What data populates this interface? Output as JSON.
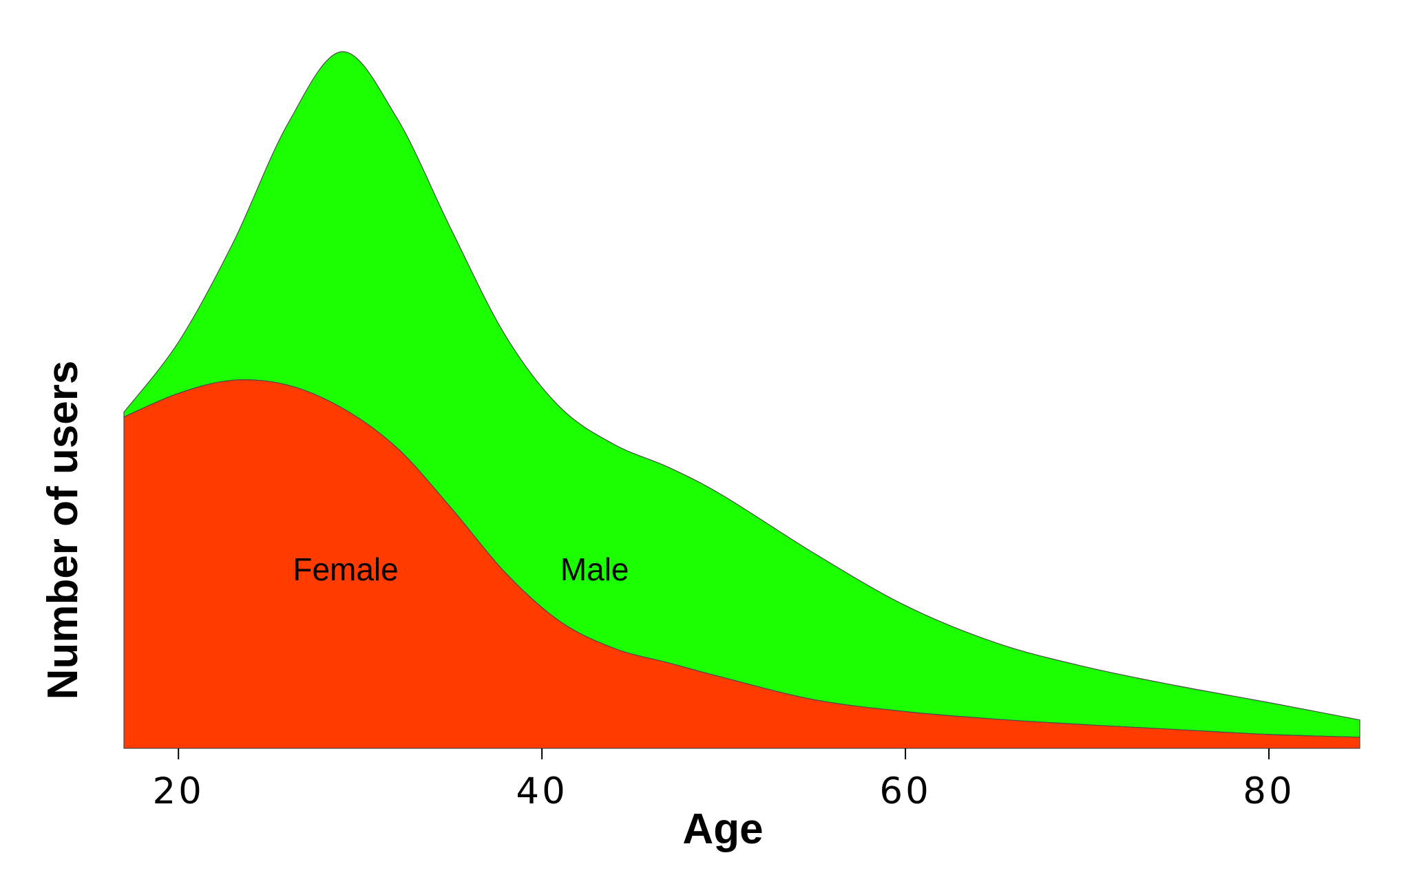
{
  "chart_data": {
    "type": "area",
    "stacked": true,
    "title": "",
    "xlabel": "Age",
    "ylabel": "Number of users",
    "xlim": [
      17,
      85
    ],
    "ylim": [
      0,
      100
    ],
    "x_ticks": [
      20,
      40,
      60,
      80
    ],
    "y_ticks": [],
    "grid": false,
    "legend": "none",
    "x": [
      17,
      20,
      23,
      26,
      29,
      32,
      35,
      38,
      41,
      44,
      47,
      50,
      55,
      60,
      65,
      70,
      75,
      80,
      85
    ],
    "series": [
      {
        "name": "Female",
        "color": "#ff3b00",
        "values": [
          47.8,
          51.2,
          53.1,
          52.4,
          49.1,
          43.4,
          34.7,
          25.3,
          18.3,
          14.4,
          12.3,
          10.2,
          7.0,
          5.3,
          4.2,
          3.4,
          2.7,
          2.0,
          1.6
        ]
      },
      {
        "name": "Male",
        "color": "#1bff00",
        "values": [
          0.7,
          7.4,
          19.8,
          37.6,
          51.4,
          47.6,
          40.2,
          34.2,
          30.9,
          29.4,
          28.2,
          26.2,
          21.1,
          15.3,
          11.0,
          8.3,
          6.3,
          4.6,
          2.5
        ]
      }
    ]
  }
}
